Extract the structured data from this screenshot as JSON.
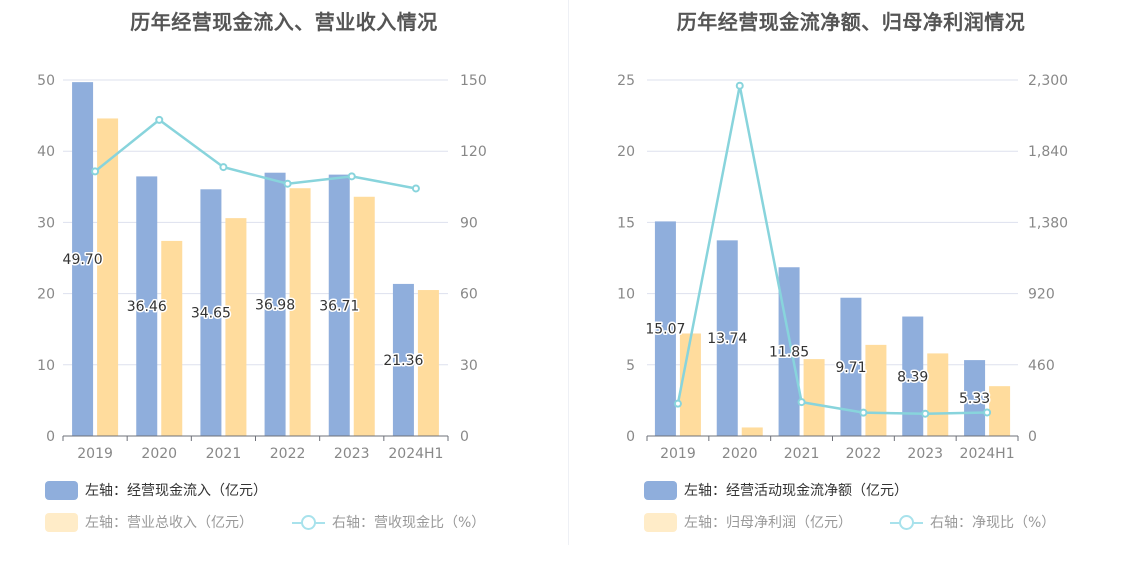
{
  "left": {
    "title": "历年经营现金流入、营业收入情况",
    "legend": {
      "bar1": "左轴：经营现金流入（亿元）",
      "bar2": "左轴：营业总收入（亿元）",
      "line": "右轴：营收现金比（%）"
    }
  },
  "right": {
    "title": "历年经营现金流净额、归母净利润情况",
    "legend": {
      "bar1": "左轴：经营活动现金流净额（亿元）",
      "bar2": "左轴：归母净利润（亿元）",
      "line": "右轴：净现比（%）"
    }
  },
  "colors": {
    "bar1": "#8faedc",
    "bar2": "#ffdc9d",
    "line": "#88d4dc",
    "grid": "#dde1ee"
  },
  "chart_data": [
    {
      "type": "bar",
      "title": "历年经营现金流入、营业收入情况",
      "categories": [
        "2019",
        "2020",
        "2021",
        "2022",
        "2023",
        "2024H1"
      ],
      "y_left": {
        "ticks": [
          "0",
          "10",
          "20",
          "30",
          "40",
          "50"
        ],
        "ylim": [
          0,
          50
        ]
      },
      "y_right": {
        "ticks": [
          "0",
          "30",
          "60",
          "90",
          "120",
          "150"
        ],
        "ylim": [
          0,
          150
        ]
      },
      "series": [
        {
          "name": "左轴：经营现金流入（亿元）",
          "axis": "left",
          "kind": "bar",
          "values": [
            49.7,
            36.46,
            34.65,
            36.98,
            36.71,
            21.36
          ],
          "labels": [
            "49.70",
            "36.46",
            "34.65",
            "36.98",
            "36.71",
            "21.36"
          ]
        },
        {
          "name": "左轴：营业总收入（亿元）",
          "axis": "left",
          "kind": "bar",
          "values": [
            44.6,
            27.4,
            30.6,
            34.8,
            33.6,
            20.5
          ]
        },
        {
          "name": "右轴：营收现金比（%）",
          "axis": "right",
          "kind": "line",
          "values": [
            111.5,
            133.2,
            113.3,
            106.3,
            109.4,
            104.3
          ]
        }
      ],
      "grid": true,
      "legend_position": "bottom"
    },
    {
      "type": "bar",
      "title": "历年经营现金流净额、归母净利润情况",
      "categories": [
        "2019",
        "2020",
        "2021",
        "2022",
        "2023",
        "2024H1"
      ],
      "y_left": {
        "ticks": [
          "0",
          "5",
          "10",
          "15",
          "20",
          "25"
        ],
        "ylim": [
          0,
          25
        ]
      },
      "y_right": {
        "ticks": [
          "0",
          "460",
          "920",
          "1,380",
          "1,840",
          "2,300"
        ],
        "ylim": [
          0,
          2300
        ]
      },
      "series": [
        {
          "name": "左轴：经营活动现金流净额（亿元）",
          "axis": "left",
          "kind": "bar",
          "values": [
            15.07,
            13.74,
            11.85,
            9.71,
            8.39,
            5.33
          ],
          "labels": [
            "15.07",
            "13.74",
            "11.85",
            "9.71",
            "8.39",
            "5.33"
          ]
        },
        {
          "name": "左轴：归母净利润（亿元）",
          "axis": "left",
          "kind": "bar",
          "values": [
            7.2,
            0.6,
            5.4,
            6.4,
            5.8,
            3.5
          ]
        },
        {
          "name": "右轴：净现比（%）",
          "axis": "right",
          "kind": "line",
          "values": [
            209,
            2263,
            219,
            151,
            144,
            152
          ]
        }
      ],
      "grid": true,
      "legend_position": "bottom"
    }
  ]
}
